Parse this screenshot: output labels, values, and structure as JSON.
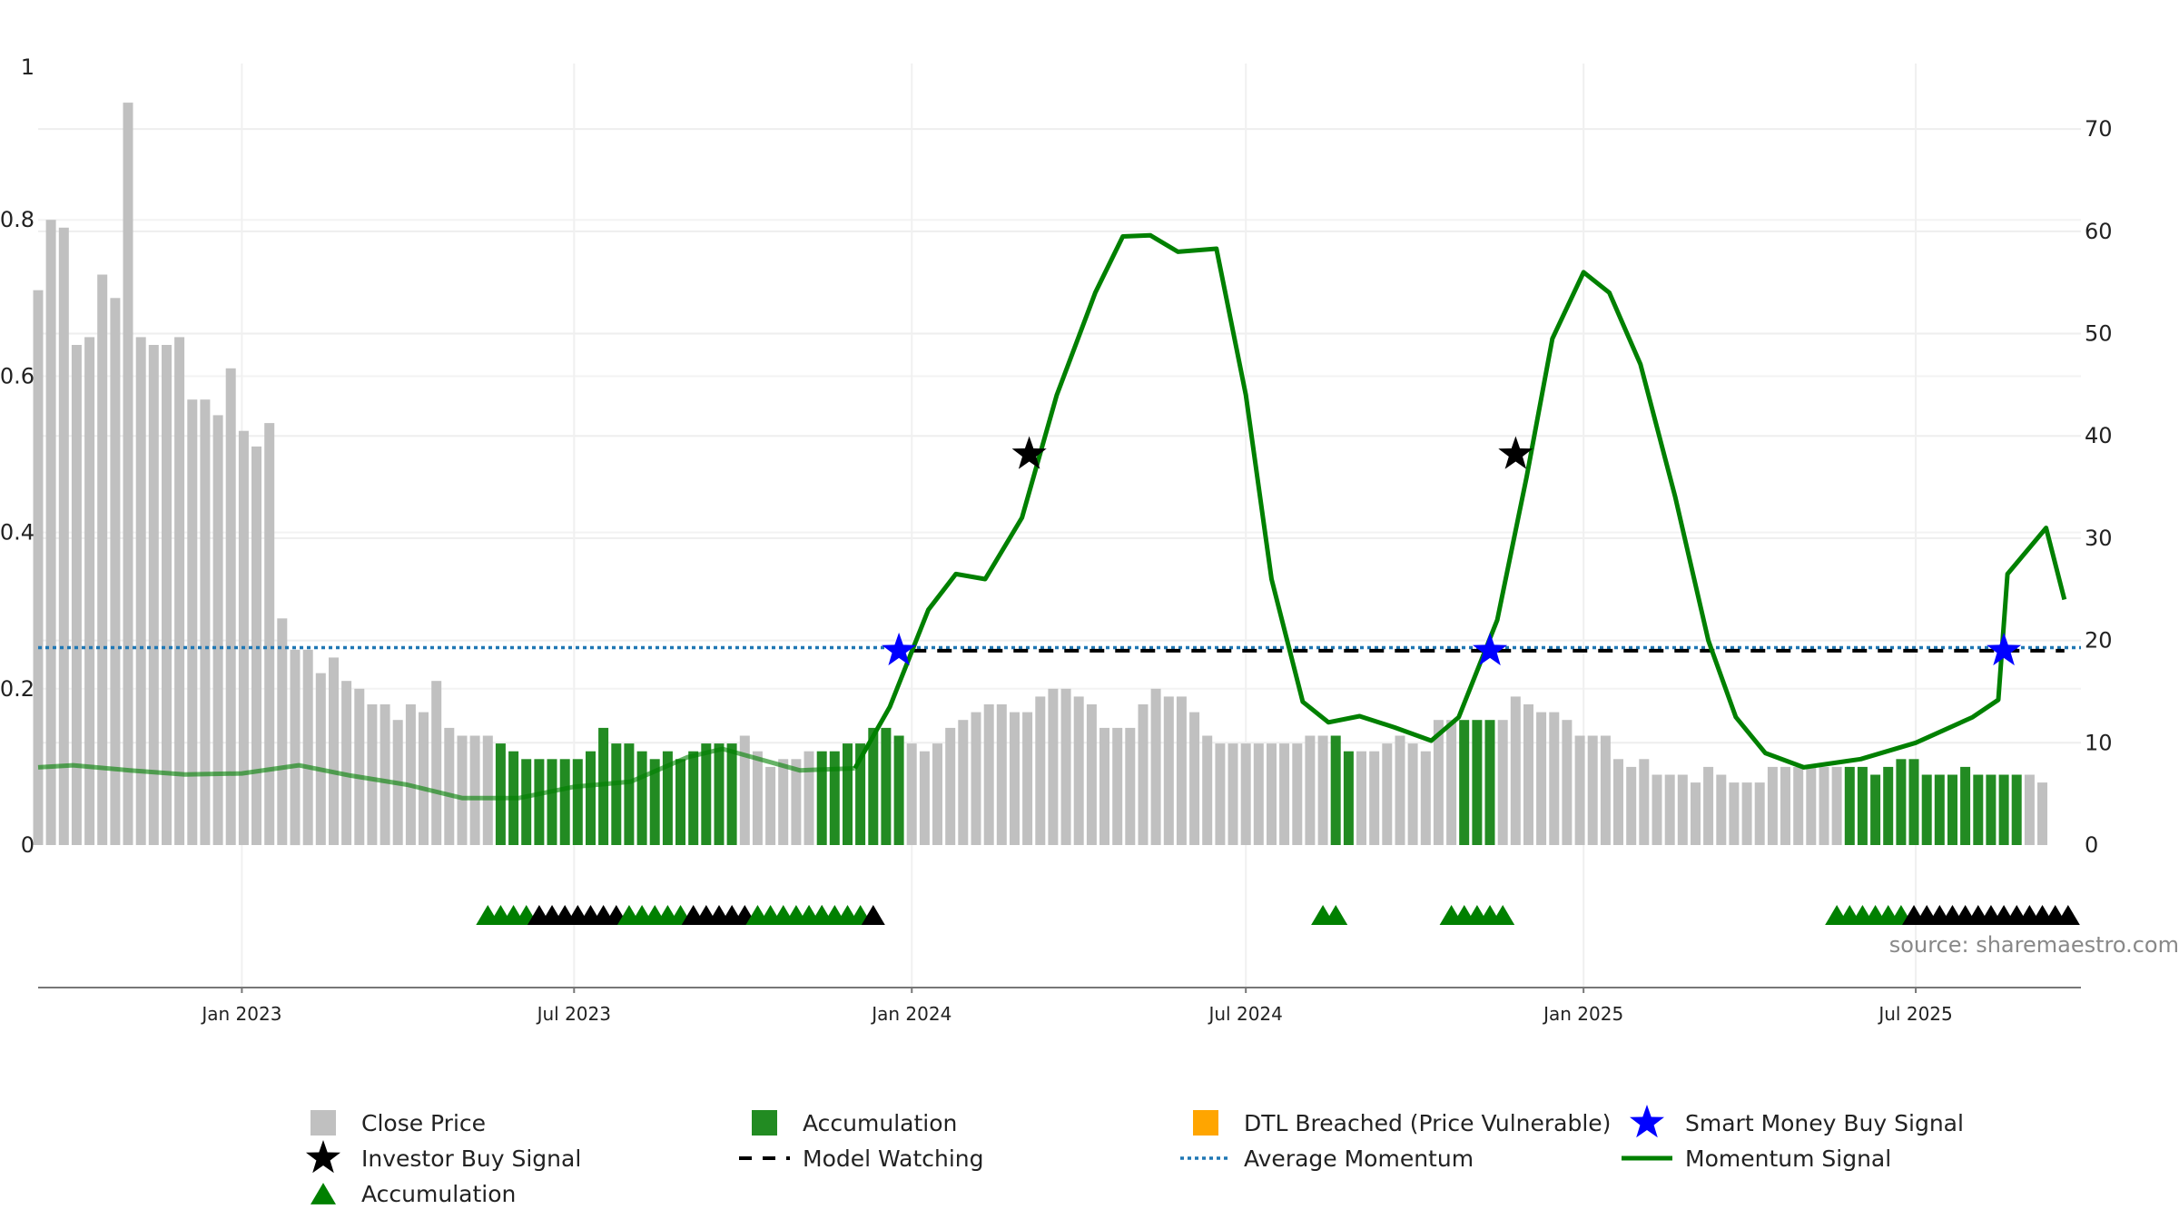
{
  "chart_data": {
    "type": "bar",
    "title": "",
    "xlabel": "",
    "ylabel": "",
    "source": "source: sharemaestro.com",
    "x_range": [
      "2022-09-12",
      "2025-09-29"
    ],
    "ylim_left": [
      0,
      1
    ],
    "ylim_right": [
      0,
      76.4
    ],
    "grid": true,
    "legend_placement": "bottom",
    "colors": {
      "close_price": "#c0c0c0",
      "accumulation": "#228b22",
      "dtl_breached": "#ffa500",
      "smart_money": "#0000ff",
      "investor_buy": "#000000",
      "momentum": "#008000",
      "average_momentum": "#1f77b4",
      "model_watching": "#000000",
      "marker_accumulation": "#008000",
      "marker_other": "#000000"
    },
    "left_ticks": [
      "0",
      "0.2",
      "0.4",
      "0.6",
      "0.8",
      "1"
    ],
    "right_ticks": [
      "0",
      "10",
      "20",
      "30",
      "40",
      "50",
      "60",
      "70"
    ],
    "x_ticks": [
      {
        "date": "2023-01-01",
        "label": "Jan 2023"
      },
      {
        "date": "2023-07-01",
        "label": "Jul 2023"
      },
      {
        "date": "2024-01-01",
        "label": "Jan 2024"
      },
      {
        "date": "2024-07-01",
        "label": "Jul 2024"
      },
      {
        "date": "2025-01-01",
        "label": "Jan 2025"
      },
      {
        "date": "2025-07-01",
        "label": "Jul 2025"
      }
    ],
    "close_price": {
      "name": "Close Price",
      "start_date": "2022-09-12",
      "step_days": 7,
      "values": [
        0.71,
        0.8,
        0.79,
        0.64,
        0.65,
        0.73,
        0.7,
        0.95,
        0.65,
        0.64,
        0.64,
        0.65,
        0.57,
        0.57,
        0.55,
        0.61,
        0.53,
        0.51,
        0.54,
        0.29,
        0.25,
        0.25,
        0.22,
        0.24,
        0.21,
        0.2,
        0.18,
        0.18,
        0.16,
        0.18,
        0.17,
        0.21,
        0.15,
        0.14,
        0.14,
        0.14,
        0.13,
        0.12,
        0.11,
        0.11,
        0.11,
        0.11,
        0.11,
        0.12,
        0.15,
        0.13,
        0.13,
        0.12,
        0.11,
        0.12,
        0.11,
        0.12,
        0.13,
        0.13,
        0.13,
        0.14,
        0.12,
        0.1,
        0.11,
        0.11,
        0.12,
        0.12,
        0.12,
        0.13,
        0.13,
        0.15,
        0.15,
        0.14,
        0.13,
        0.12,
        0.13,
        0.15,
        0.16,
        0.17,
        0.18,
        0.18,
        0.17,
        0.17,
        0.19,
        0.2,
        0.2,
        0.19,
        0.18,
        0.15,
        0.15,
        0.15,
        0.18,
        0.2,
        0.19,
        0.19,
        0.17,
        0.14,
        0.13,
        0.13,
        0.13,
        0.13,
        0.13,
        0.13,
        0.13,
        0.14,
        0.14,
        0.14,
        0.12,
        0.12,
        0.12,
        0.13,
        0.14,
        0.13,
        0.12,
        0.16,
        0.16,
        0.16,
        0.16,
        0.16,
        0.16,
        0.19,
        0.18,
        0.17,
        0.17,
        0.16,
        0.14,
        0.14,
        0.14,
        0.11,
        0.1,
        0.11,
        0.09,
        0.09,
        0.09,
        0.08,
        0.1,
        0.09,
        0.08,
        0.08,
        0.08,
        0.1,
        0.1,
        0.1,
        0.1,
        0.1,
        0.1,
        0.1,
        0.1,
        0.09,
        0.1,
        0.11,
        0.11,
        0.09,
        0.09,
        0.09,
        0.1,
        0.09,
        0.09,
        0.09,
        0.09,
        0.09,
        0.08
      ]
    },
    "accumulation_ranges": [
      [
        "2023-05-22",
        "2023-08-21"
      ],
      [
        "2023-08-28",
        "2023-09-25"
      ],
      [
        "2023-11-13",
        "2023-12-25"
      ],
      [
        "2024-08-19",
        "2024-08-26"
      ],
      [
        "2024-10-28",
        "2024-11-11"
      ],
      [
        "2025-05-26",
        "2025-08-25"
      ]
    ],
    "momentum": {
      "name": "Momentum Signal",
      "points": [
        [
          "2022-09-12",
          7.6
        ],
        [
          "2022-10-01",
          7.8
        ],
        [
          "2022-11-01",
          7.3
        ],
        [
          "2022-12-01",
          6.9
        ],
        [
          "2023-01-01",
          7.0
        ],
        [
          "2023-02-01",
          7.8
        ],
        [
          "2023-03-01",
          6.8
        ],
        [
          "2023-04-01",
          5.9
        ],
        [
          "2023-05-01",
          4.6
        ],
        [
          "2023-06-01",
          4.6
        ],
        [
          "2023-07-01",
          5.7
        ],
        [
          "2023-08-01",
          6.2
        ],
        [
          "2023-09-01",
          8.6
        ],
        [
          "2023-09-20",
          9.4
        ],
        [
          "2023-11-01",
          7.3
        ],
        [
          "2023-12-01",
          7.5
        ],
        [
          "2023-12-20",
          13.5
        ],
        [
          "2024-01-10",
          23.0
        ],
        [
          "2024-01-25",
          26.5
        ],
        [
          "2024-02-10",
          26.0
        ],
        [
          "2024-03-01",
          32.0
        ],
        [
          "2024-03-20",
          44.0
        ],
        [
          "2024-04-10",
          54.0
        ],
        [
          "2024-04-25",
          59.5
        ],
        [
          "2024-05-10",
          59.6
        ],
        [
          "2024-05-25",
          58.0
        ],
        [
          "2024-06-15",
          58.3
        ],
        [
          "2024-07-01",
          44.0
        ],
        [
          "2024-07-15",
          26.0
        ],
        [
          "2024-08-01",
          14.0
        ],
        [
          "2024-08-15",
          12.0
        ],
        [
          "2024-09-01",
          12.6
        ],
        [
          "2024-09-20",
          11.5
        ],
        [
          "2024-10-10",
          10.2
        ],
        [
          "2024-10-25",
          12.5
        ],
        [
          "2024-11-15",
          22.0
        ],
        [
          "2024-12-01",
          36.0
        ],
        [
          "2024-12-15",
          49.5
        ],
        [
          "2025-01-01",
          56.0
        ],
        [
          "2025-01-15",
          54.0
        ],
        [
          "2025-02-01",
          47.0
        ],
        [
          "2025-02-20",
          34.0
        ],
        [
          "2025-03-10",
          20.0
        ],
        [
          "2025-03-25",
          12.5
        ],
        [
          "2025-04-10",
          9.0
        ],
        [
          "2025-05-01",
          7.6
        ],
        [
          "2025-06-01",
          8.4
        ],
        [
          "2025-07-01",
          10.0
        ],
        [
          "2025-08-01",
          12.5
        ],
        [
          "2025-08-15",
          14.2
        ],
        [
          "2025-08-20",
          26.5
        ],
        [
          "2025-09-10",
          31.0
        ],
        [
          "2025-09-20",
          24.0
        ]
      ]
    },
    "average_momentum": {
      "name": "Average Momentum",
      "value": 19.3
    },
    "model_watching": {
      "name": "Model Watching",
      "value": 19.0,
      "start": "2024-01-01",
      "end": "2025-09-20"
    },
    "smart_money_signals": {
      "name": "Smart Money Buy Signal",
      "points": [
        [
          "2023-12-25",
          19.0
        ],
        [
          "2024-11-11",
          19.0
        ],
        [
          "2025-08-18",
          19.0
        ]
      ]
    },
    "investor_signals": {
      "name": "Investor Buy Signal",
      "points": [
        [
          "2024-03-05",
          38.2
        ],
        [
          "2024-11-25",
          38.2
        ]
      ]
    },
    "marker_row": {
      "name": "Accumulation",
      "start_date": "2023-05-15",
      "step_days": 7,
      "colors": [
        "g",
        "g",
        "g",
        "g",
        "k",
        "k",
        "k",
        "k",
        "k",
        "k",
        "k",
        "g",
        "g",
        "g",
        "g",
        "g",
        "k",
        "k",
        "k",
        "k",
        "k",
        "g",
        "g",
        "g",
        "g",
        "g",
        "k"
      ],
      "gaps": [
        {
          "start": "2023-11-06",
          "colors": [
            "g",
            "g",
            "g",
            "g",
            "g",
            "k"
          ]
        },
        {
          "start": "2024-08-12",
          "colors": [
            "g",
            "g"
          ]
        },
        {
          "start": "2024-10-21",
          "colors": [
            "g",
            "g",
            "g",
            "g",
            "g"
          ]
        },
        {
          "start": "2025-05-19",
          "colors": [
            "g",
            "g",
            "g",
            "g",
            "g",
            "g",
            "k",
            "k",
            "k",
            "k",
            "k",
            "k",
            "k",
            "k",
            "k",
            "k",
            "k",
            "k",
            "k"
          ]
        }
      ]
    },
    "legend": [
      {
        "key": "close_price",
        "label": "Close Price"
      },
      {
        "key": "accumulation_bar",
        "label": "Accumulation"
      },
      {
        "key": "dtl_breached",
        "label": "DTL Breached (Price Vulnerable)"
      },
      {
        "key": "smart_money",
        "label": "Smart Money Buy Signal"
      },
      {
        "key": "investor_buy",
        "label": "Investor Buy Signal"
      },
      {
        "key": "model_watching",
        "label": "Model Watching"
      },
      {
        "key": "average_momentum",
        "label": "Average Momentum"
      },
      {
        "key": "momentum",
        "label": "Momentum Signal"
      },
      {
        "key": "accumulation_marker",
        "label": "Accumulation"
      }
    ]
  }
}
